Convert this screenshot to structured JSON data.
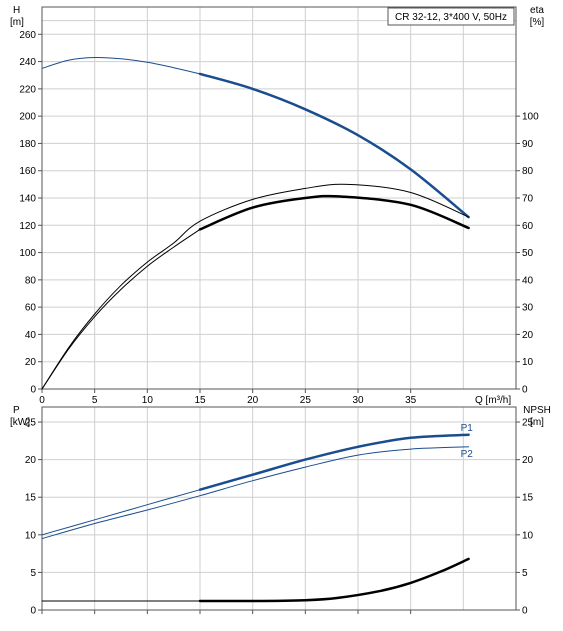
{
  "chart_data": [
    {
      "type": "line",
      "title": "CR 32-12, 3*400 V, 50Hz",
      "xlabel": "Q [m³/h]",
      "x_ticks": [
        0,
        5,
        10,
        15,
        20,
        25,
        30,
        35
      ],
      "xlim": [
        0,
        45
      ],
      "left_axis": {
        "label_line1": "H",
        "label_line2": "[m]",
        "ylim": [
          0,
          280
        ],
        "ticks": [
          0,
          20,
          40,
          60,
          80,
          100,
          120,
          140,
          160,
          180,
          200,
          220,
          240,
          260
        ]
      },
      "right_axis": {
        "label_line1": "eta",
        "label_line2": "[%]",
        "ylim": [
          0,
          140
        ],
        "ticks": [
          0,
          10,
          20,
          30,
          40,
          50,
          60,
          70,
          80,
          90,
          100
        ]
      },
      "grid": true,
      "series": [
        {
          "axis": "left",
          "color": "#1a4d8f",
          "segments": [
            {
              "width": 1,
              "x": [
                0,
                2.5,
                5,
                7.5,
                10,
                12.5,
                15
              ],
              "y": [
                235,
                241,
                243,
                242,
                239.5,
                235.5,
                231
              ]
            },
            {
              "width": 2.5,
              "x": [
                15,
                20,
                25,
                30,
                35,
                40.5
              ],
              "y": [
                231,
                220,
                205,
                186,
                161,
                126
              ]
            }
          ]
        },
        {
          "axis": "right",
          "color": "#000000",
          "segments": [
            {
              "width": 1,
              "x": [
                0,
                2.5,
                5,
                7.5,
                10,
                12.5,
                15,
                20,
                25,
                29,
                35,
                40.5
              ],
              "y": [
                0,
                15,
                27.5,
                38,
                46.5,
                53.5,
                61.5,
                69.5,
                73.5,
                75,
                72,
                63
              ]
            }
          ]
        },
        {
          "axis": "right",
          "color": "#000000",
          "segments": [
            {
              "width": 1,
              "x": [
                0,
                2.5,
                5,
                7.5,
                10,
                12.5,
                15
              ],
              "y": [
                0,
                14.5,
                26.5,
                36.5,
                45,
                52,
                58.5
              ]
            },
            {
              "width": 2.5,
              "x": [
                15,
                20,
                25,
                28.5,
                35,
                40.5
              ],
              "y": [
                58.5,
                66.5,
                70,
                70.5,
                67.5,
                59
              ]
            }
          ]
        }
      ]
    },
    {
      "type": "line",
      "xlabel": "",
      "x_ticks": [
        0,
        5,
        10,
        15,
        20,
        25,
        30,
        35
      ],
      "xlim": [
        0,
        45
      ],
      "left_axis": {
        "label_line1": "P",
        "label_line2": "[kW]",
        "ylim": [
          0,
          27
        ],
        "ticks": [
          0,
          5,
          10,
          15,
          20,
          25
        ]
      },
      "right_axis": {
        "label_line1": "NPSH",
        "label_line2": "[m]",
        "ylim": [
          0,
          27
        ],
        "ticks": [
          0,
          5,
          10,
          15,
          20,
          25
        ]
      },
      "grid": true,
      "series": [
        {
          "name": "P1",
          "axis": "left",
          "color": "#1a4d8f",
          "segments": [
            {
              "width": 1,
              "x": [
                0,
                5,
                10,
                15
              ],
              "y": [
                10,
                12,
                14,
                16
              ]
            },
            {
              "width": 2.5,
              "x": [
                15,
                20,
                25,
                30,
                35,
                40.5
              ],
              "y": [
                16,
                18,
                20,
                21.7,
                22.9,
                23.3
              ]
            }
          ]
        },
        {
          "name": "P2",
          "axis": "left",
          "color": "#1a4d8f",
          "segments": [
            {
              "width": 1,
              "x": [
                0,
                5,
                10,
                15,
                20,
                25,
                30,
                35,
                40.5
              ],
              "y": [
                9.5,
                11.5,
                13.3,
                15.2,
                17.2,
                19,
                20.6,
                21.4,
                21.7
              ]
            }
          ]
        },
        {
          "axis": "right",
          "color": "#000000",
          "segments": [
            {
              "width": 1,
              "x": [
                0,
                15
              ],
              "y": [
                1.2,
                1.2
              ]
            },
            {
              "width": 2.5,
              "x": [
                15,
                20,
                25,
                28,
                32,
                35,
                38,
                40.5
              ],
              "y": [
                1.2,
                1.2,
                1.3,
                1.6,
                2.5,
                3.6,
                5.2,
                6.8
              ]
            }
          ]
        }
      ]
    }
  ]
}
